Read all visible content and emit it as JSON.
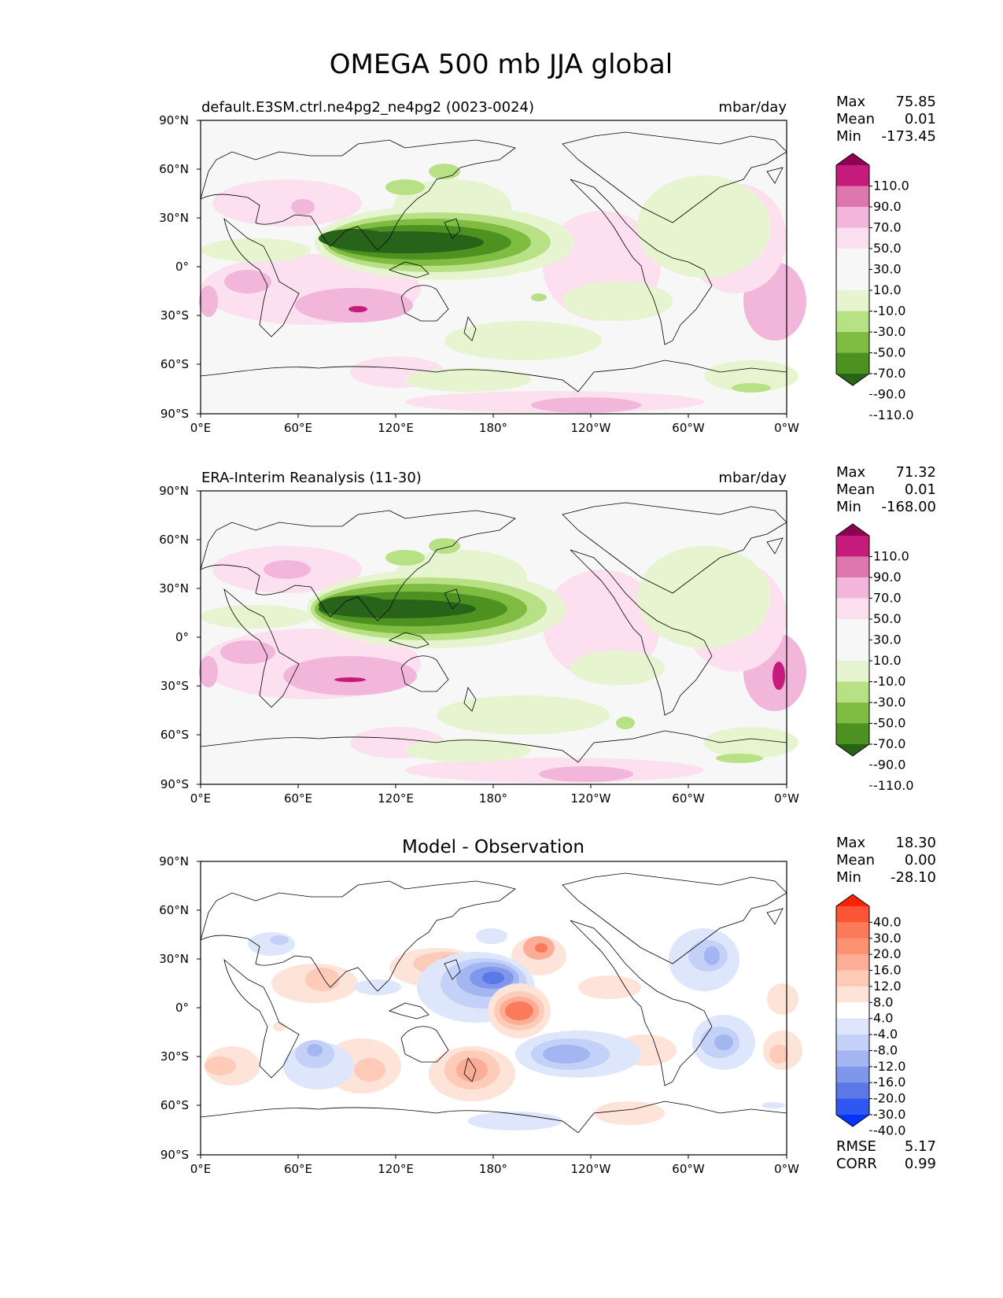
{
  "title": "OMEGA 500 mb JJA global",
  "lat_ticks": [
    "90°N",
    "60°N",
    "30°N",
    "0°",
    "30°S",
    "60°S",
    "90°S"
  ],
  "lon_ticks": [
    "0°E",
    "60°E",
    "120°E",
    "180°",
    "120°W",
    "60°W",
    "0°W"
  ],
  "panels": [
    {
      "id": "model",
      "left_title": "default.E3SM.ctrl.ne4pg2_ne4pg2 (0023-0024)",
      "center_title": "",
      "right_title": "mbar/day",
      "stats": [
        {
          "label": "Max",
          "value": "75.85"
        },
        {
          "label": "Mean",
          "value": "0.01"
        },
        {
          "label": "Min",
          "value": "-173.45"
        }
      ],
      "colorbar": {
        "levels": [
          "110.0",
          "90.0",
          "70.0",
          "50.0",
          "30.0",
          "10.0",
          "-10.0",
          "-30.0",
          "-50.0",
          "-70.0",
          "-90.0",
          "-110.0"
        ],
        "colors": [
          "#8e0152",
          "#c51b7d",
          "#de77ae",
          "#f1b6da",
          "#fde0ef",
          "#f7f7f7",
          "#f7f7f7",
          "#e6f5d0",
          "#b8e186",
          "#7fbc41",
          "#4d9221",
          "#276419"
        ]
      },
      "extra_stats": []
    },
    {
      "id": "obs",
      "left_title": "ERA-Interim Reanalysis (11-30)",
      "center_title": "",
      "right_title": "mbar/day",
      "stats": [
        {
          "label": "Max",
          "value": "71.32"
        },
        {
          "label": "Mean",
          "value": "0.01"
        },
        {
          "label": "Min",
          "value": "-168.00"
        }
      ],
      "colorbar": {
        "levels": [
          "110.0",
          "90.0",
          "70.0",
          "50.0",
          "30.0",
          "10.0",
          "-10.0",
          "-30.0",
          "-50.0",
          "-70.0",
          "-90.0",
          "-110.0"
        ],
        "colors": [
          "#8e0152",
          "#c51b7d",
          "#de77ae",
          "#f1b6da",
          "#fde0ef",
          "#f7f7f7",
          "#f7f7f7",
          "#e6f5d0",
          "#b8e186",
          "#7fbc41",
          "#4d9221",
          "#276419"
        ]
      },
      "extra_stats": []
    },
    {
      "id": "diff",
      "left_title": "",
      "center_title": "Model - Observation",
      "right_title": "",
      "stats": [
        {
          "label": "Max",
          "value": "18.30"
        },
        {
          "label": "Mean",
          "value": "0.00"
        },
        {
          "label": "Min",
          "value": "-28.10"
        }
      ],
      "colorbar": {
        "levels": [
          "40.0",
          "30.0",
          "20.0",
          "16.0",
          "12.0",
          "8.0",
          "4.0",
          "-4.0",
          "-8.0",
          "-12.0",
          "-16.0",
          "-20.0",
          "-30.0",
          "-40.0"
        ],
        "colors": [
          "#ff2200",
          "#fa5535",
          "#fb7a5a",
          "#fc9272",
          "#fcad96",
          "#fdcbb8",
          "#fee3d8",
          "#ffffff",
          "#dde6fb",
          "#c3d0f7",
          "#a4b6f1",
          "#7f96ea",
          "#5a78e6",
          "#3057ef",
          "#0035ff"
        ]
      },
      "extra_stats": [
        {
          "label": "RMSE",
          "value": "5.17"
        },
        {
          "label": "CORR",
          "value": "0.99"
        }
      ]
    }
  ]
}
